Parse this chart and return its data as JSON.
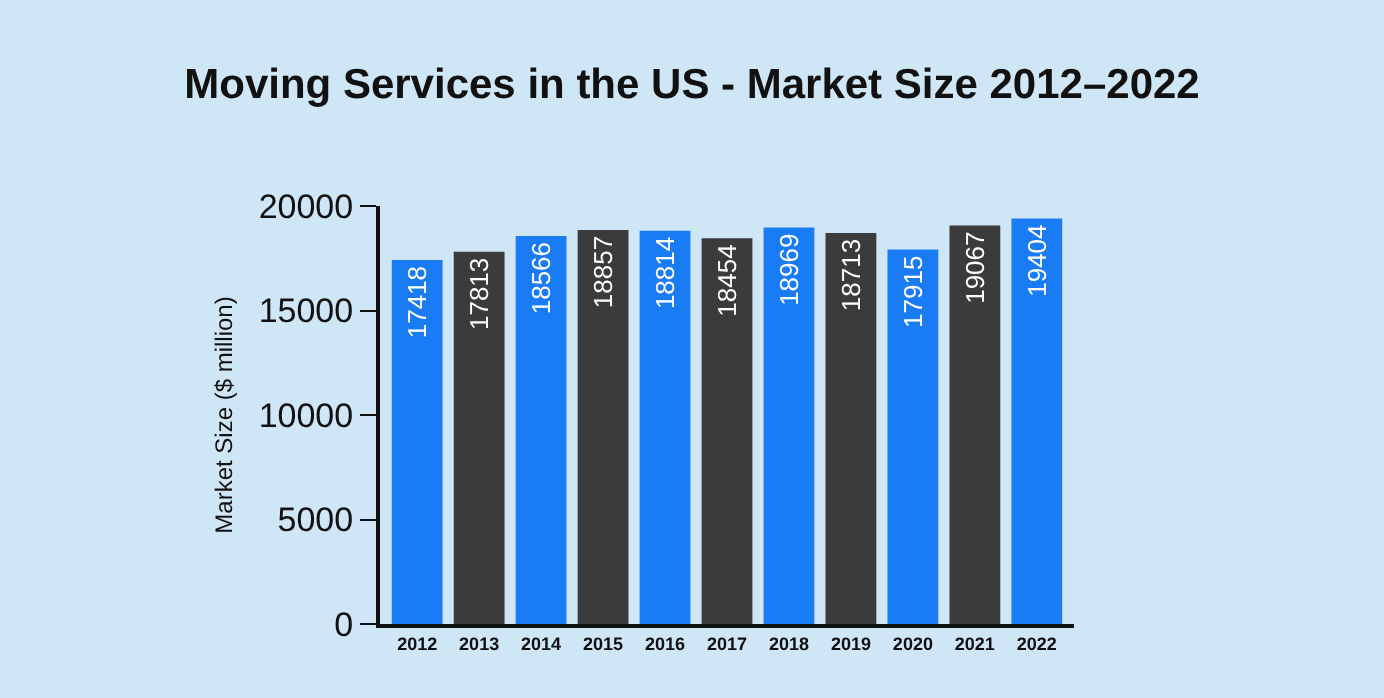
{
  "chart_data": {
    "type": "bar",
    "title": "Moving Services in the US - Market Size 2012–2022",
    "ylabel": "Market Size ($ million)",
    "categories": [
      "2012",
      "2013",
      "2014",
      "2015",
      "2016",
      "2017",
      "2018",
      "2019",
      "2020",
      "2021",
      "2022"
    ],
    "values": [
      17418,
      17813,
      18566,
      18857,
      18814,
      18454,
      18969,
      18713,
      17915,
      19067,
      19404
    ],
    "colors": [
      "#1a7cf5",
      "#3b3b3b",
      "#1a7cf5",
      "#3b3b3b",
      "#1a7cf5",
      "#3b3b3b",
      "#1a7cf5",
      "#3b3b3b",
      "#1a7cf5",
      "#3b3b3b",
      "#1a7cf5"
    ],
    "ylim": [
      0,
      20000
    ],
    "yticks": [
      0,
      5000,
      10000,
      15000,
      20000
    ],
    "data_labels": true
  }
}
